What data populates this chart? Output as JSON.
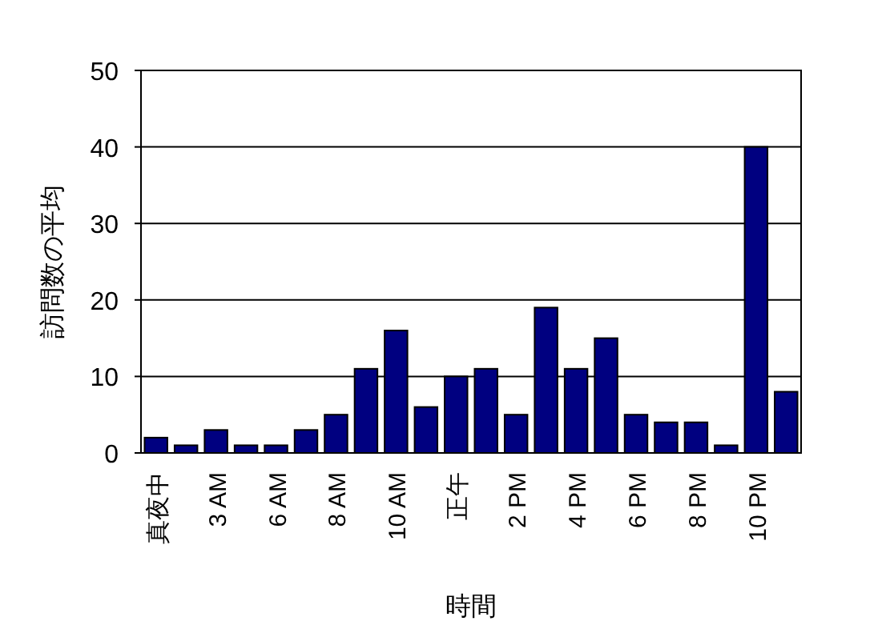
{
  "chart_data": {
    "type": "bar",
    "xlabel": "時間",
    "ylabel": "訪問数の平均",
    "categories": [
      "真夜中",
      null,
      "3 AM",
      null,
      "6 AM",
      null,
      "8 AM",
      null,
      "10 AM",
      null,
      "正午",
      null,
      "2 PM",
      null,
      "4 PM",
      null,
      "6 PM",
      null,
      "8 PM",
      null,
      "10 PM",
      null
    ],
    "values": [
      2,
      1,
      3,
      1,
      1,
      3,
      5,
      11,
      16,
      6,
      10,
      11,
      5,
      19,
      11,
      15,
      5,
      4,
      4,
      1,
      40,
      8
    ],
    "color": "#000080",
    "ylim": [
      0,
      50
    ],
    "yticks": [
      0,
      10,
      20,
      30,
      40,
      50
    ],
    "grid": "y"
  }
}
